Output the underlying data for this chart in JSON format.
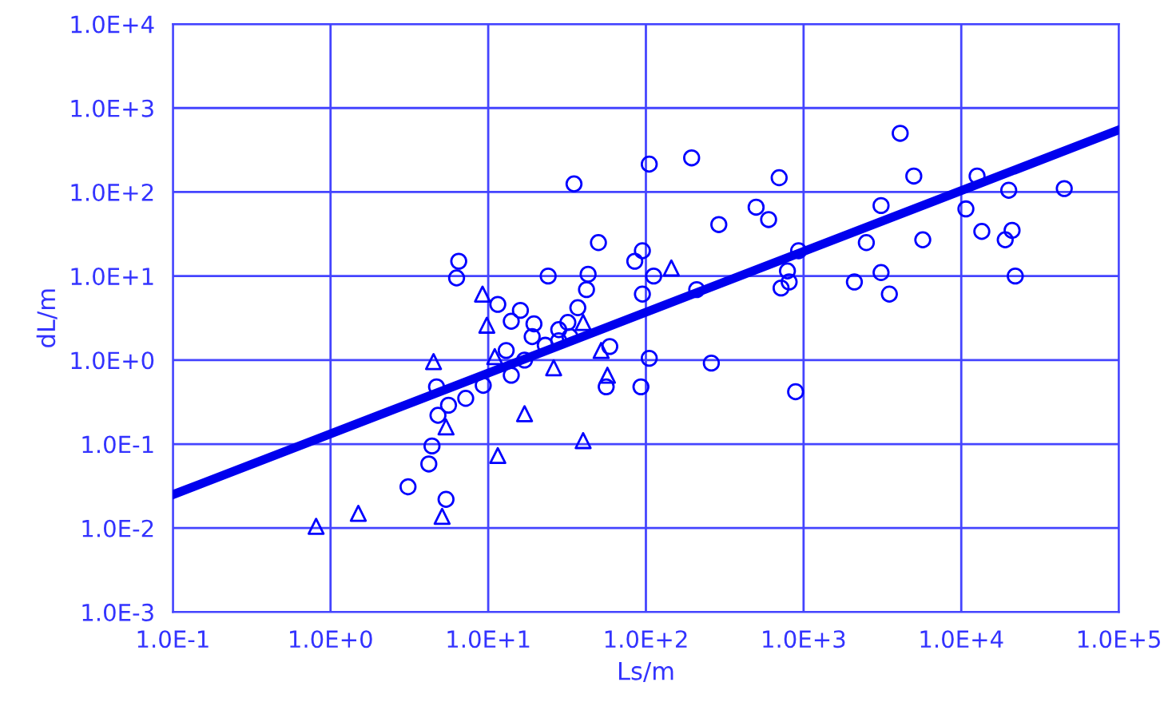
{
  "chart_data": {
    "type": "scatter",
    "xlabel": "Ls/m",
    "ylabel": "dL/m",
    "log": "xy",
    "grid": true,
    "legend": false,
    "xlim": [
      0.1,
      100000
    ],
    "ylim": [
      0.001,
      10000
    ],
    "xticks": [
      {
        "value": 0.1,
        "label": "1.0E-1"
      },
      {
        "value": 1,
        "label": "1.0E+0"
      },
      {
        "value": 10,
        "label": "1.0E+1"
      },
      {
        "value": 100,
        "label": "1.0E+2"
      },
      {
        "value": 1000,
        "label": "1.0E+3"
      },
      {
        "value": 10000,
        "label": "1.0E+4"
      },
      {
        "value": 100000,
        "label": "1.0E+5"
      }
    ],
    "yticks": [
      {
        "value": 0.001,
        "label": "1.0E-3"
      },
      {
        "value": 0.01,
        "label": "1.0E-2"
      },
      {
        "value": 0.1,
        "label": "1.0E-1"
      },
      {
        "value": 1,
        "label": "1.0E+0"
      },
      {
        "value": 10,
        "label": "1.0E+1"
      },
      {
        "value": 100,
        "label": "1.0E+2"
      },
      {
        "value": 1000,
        "label": "1.0E+3"
      },
      {
        "value": 10000,
        "label": "1.0E+4"
      }
    ],
    "series": [
      {
        "marker": "circle",
        "color": "#0000ff",
        "x": [
          6.5,
          6.3,
          11.5,
          14,
          4.7,
          5.6,
          7.2,
          9.3,
          4.8,
          4.4,
          4.2,
          3.1,
          5.4,
          13,
          50,
          95,
          85,
          24,
          43,
          112,
          42,
          95,
          210,
          720,
          810,
          930,
          16,
          19.5,
          19,
          37,
          32,
          28,
          33,
          28,
          23,
          59,
          17,
          14,
          105,
          260,
          56,
          93,
          890,
          195,
          700,
          4100,
          5000,
          12600,
          20000,
          45000,
          500,
          600,
          290,
          3100,
          10700,
          2500,
          5700,
          13500,
          21000,
          19000,
          790,
          2100,
          3100,
          3500,
          22000,
          35,
          105
        ],
        "values": [
          15,
          9.5,
          4.6,
          2.9,
          0.48,
          0.29,
          0.35,
          0.5,
          0.22,
          0.095,
          0.058,
          0.031,
          0.022,
          1.3,
          25,
          20,
          15,
          10,
          10.5,
          10,
          6.9,
          6.1,
          6.9,
          7.2,
          8.5,
          20,
          3.9,
          2.7,
          1.9,
          4.2,
          2.8,
          2.3,
          1.9,
          1.7,
          1.5,
          1.45,
          1.0,
          0.66,
          1.05,
          0.92,
          0.48,
          0.48,
          0.42,
          255,
          148,
          500,
          155,
          155,
          105,
          110,
          66,
          47,
          41,
          69,
          63,
          25,
          27,
          34,
          35,
          27,
          11.5,
          8.5,
          11,
          6.1,
          10,
          125,
          215
        ]
      },
      {
        "marker": "triangle",
        "color": "#0000ff",
        "x": [
          9.2,
          9.8,
          11,
          4.5,
          5.4,
          11.5,
          1.5,
          0.81,
          5.1,
          145,
          40,
          52,
          26,
          57,
          17,
          40
        ],
        "values": [
          6.1,
          2.6,
          1.1,
          0.96,
          0.16,
          0.073,
          0.015,
          0.0105,
          0.0138,
          12.5,
          2.8,
          1.3,
          0.81,
          0.66,
          0.23,
          0.11
        ]
      },
      {
        "type": "line",
        "color": "#0000ee",
        "line_style": "solid",
        "marker": "none",
        "x": [
          0.1,
          100000
        ],
        "values": [
          0.025,
          550
        ]
      }
    ]
  }
}
